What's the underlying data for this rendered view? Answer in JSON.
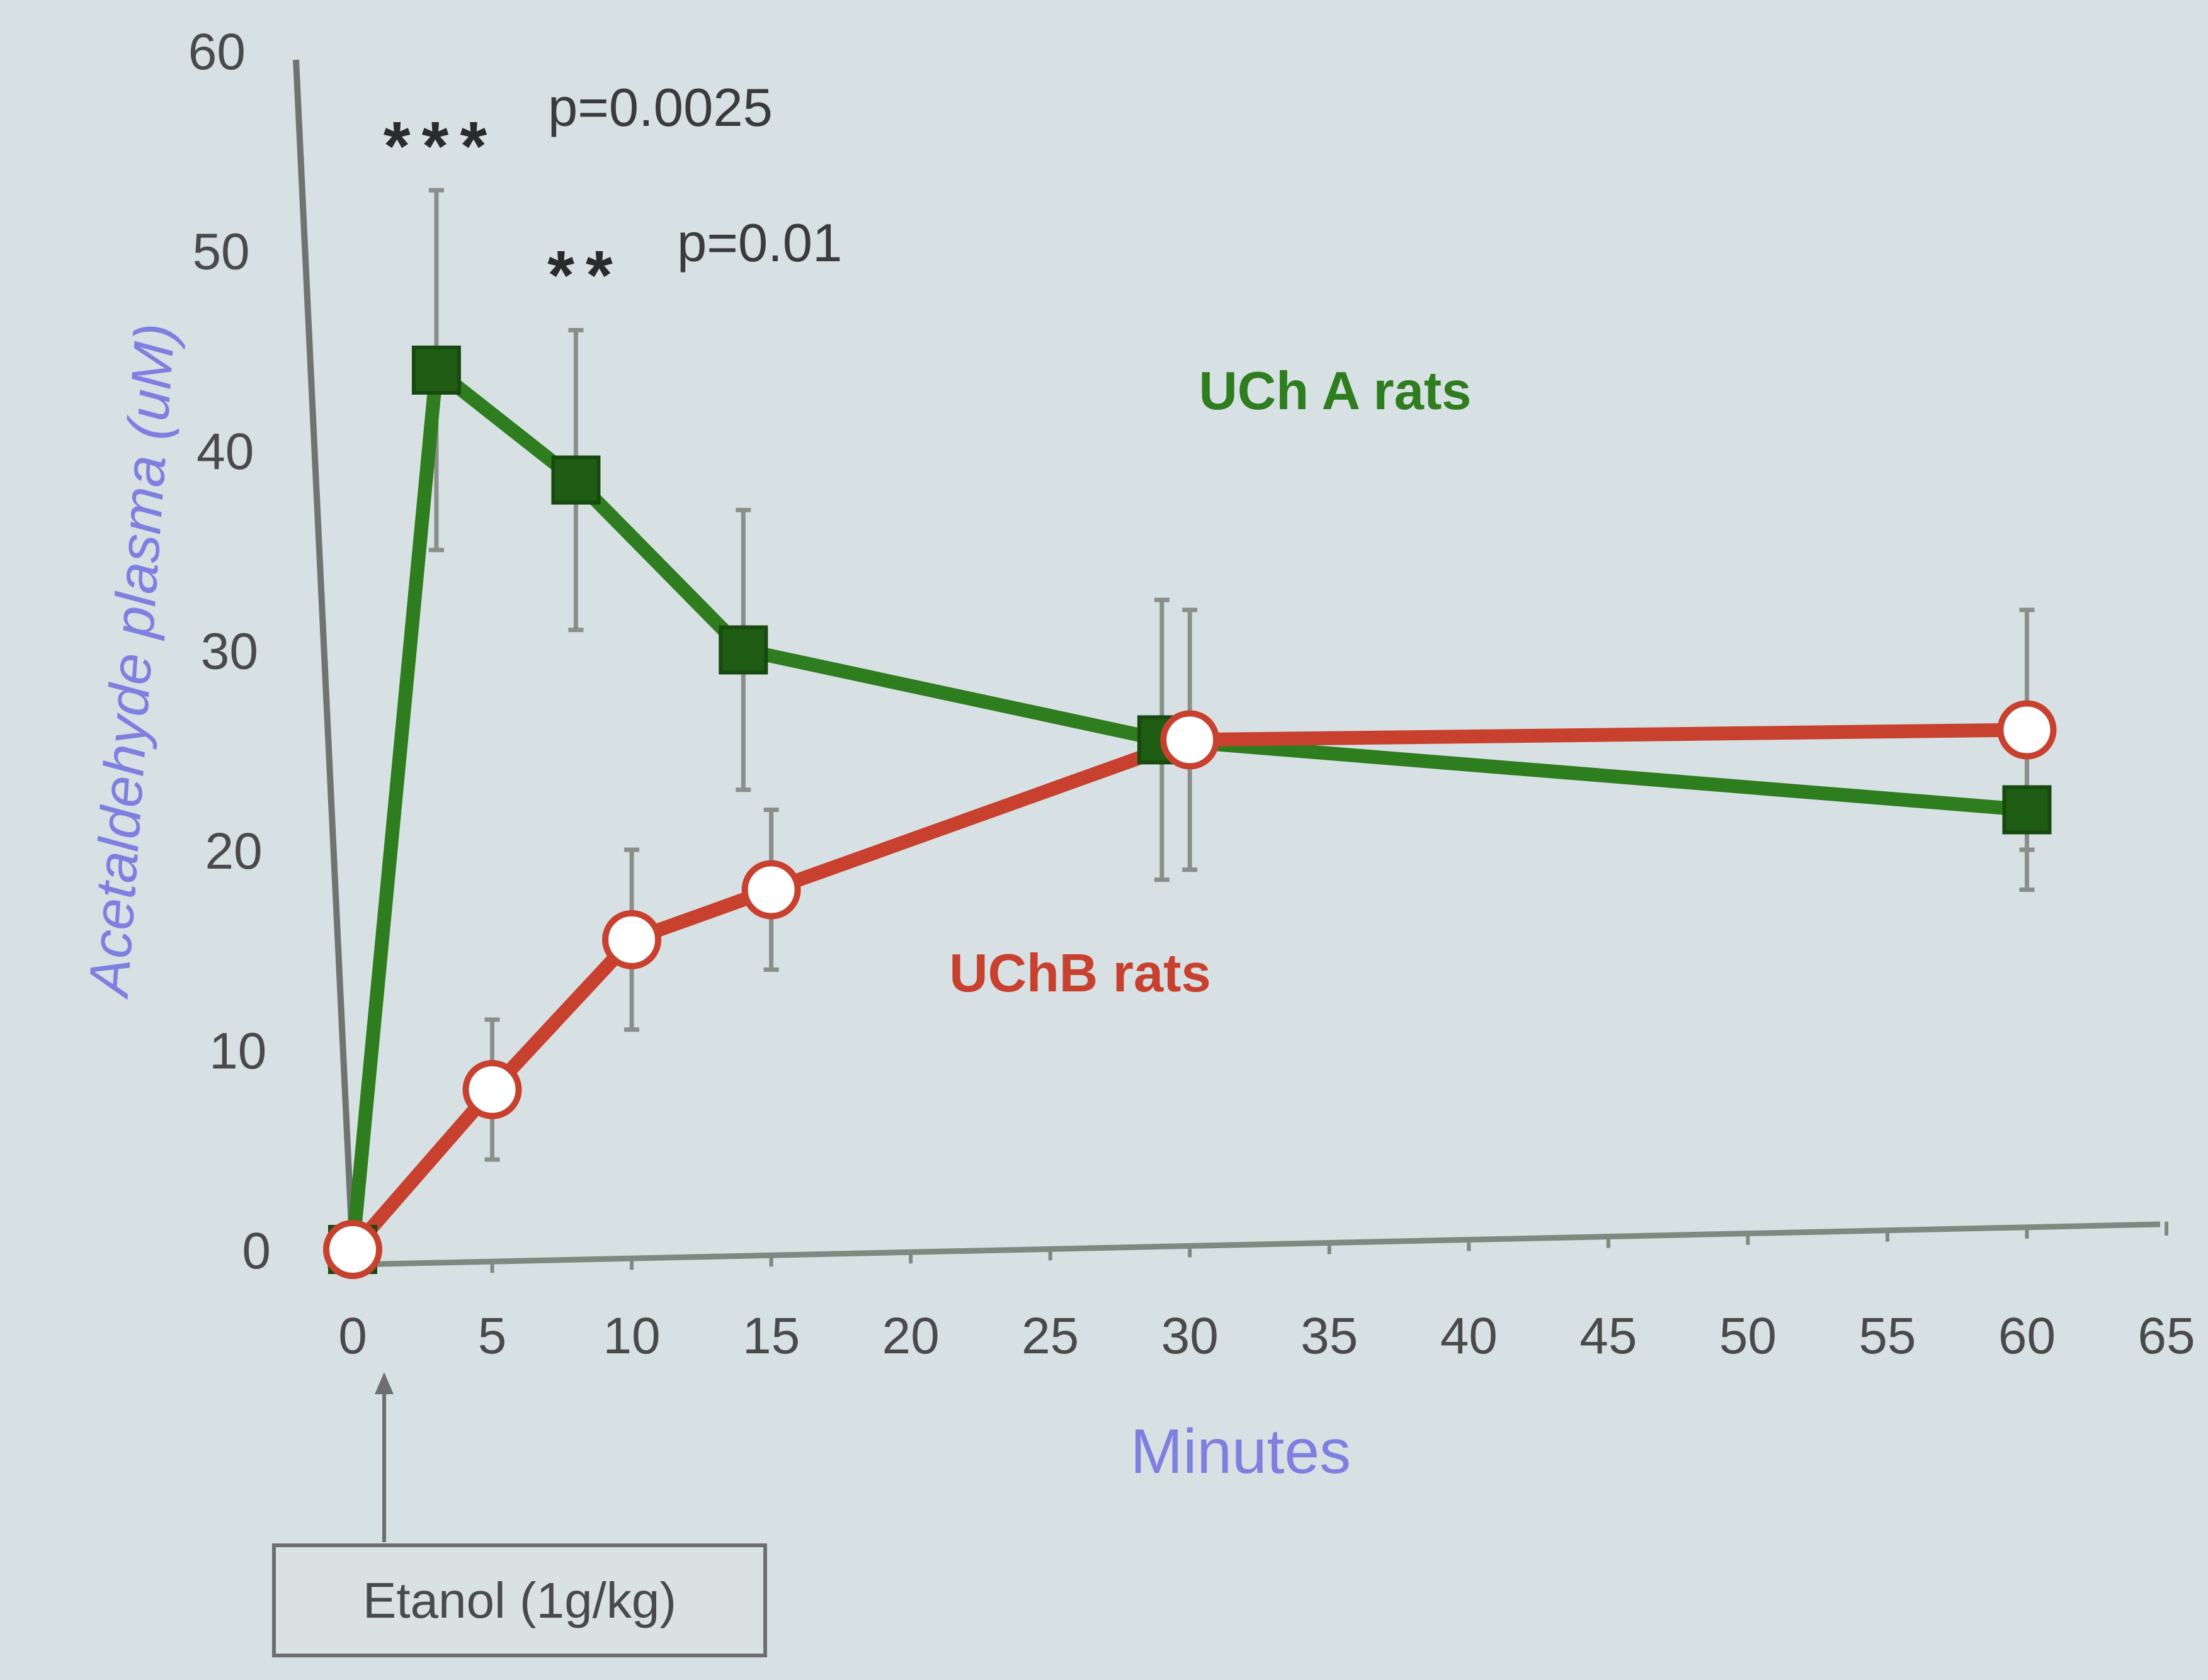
{
  "chart_data": {
    "type": "line",
    "xlabel": "Minutes",
    "ylabel": "Acetaldehyde plasma (uM)",
    "xlim": [
      0,
      65
    ],
    "ylim": [
      0,
      60
    ],
    "x_ticks": [
      "0",
      "5",
      "10",
      "15",
      "20",
      "25",
      "30",
      "35",
      "40",
      "45",
      "50",
      "55",
      "60",
      "65"
    ],
    "y_ticks": [
      "0",
      "10",
      "20",
      "30",
      "40",
      "50",
      "60"
    ],
    "grid": false,
    "series": [
      {
        "name": "UCh A rats",
        "color": "#2e7d1e",
        "marker": "filled-square",
        "x": [
          0,
          3,
          8,
          14,
          29,
          60
        ],
        "y": [
          0,
          44,
          38.5,
          30,
          25.5,
          22
        ],
        "err": [
          0,
          9,
          7.5,
          7,
          7,
          4
        ]
      },
      {
        "name": "UChB rats",
        "color": "#c8402e",
        "marker": "open-circle",
        "x": [
          0,
          5,
          10,
          15,
          30,
          60
        ],
        "y": [
          0,
          8,
          15.5,
          18,
          25.5,
          26
        ],
        "err": [
          0,
          3.5,
          4.5,
          4,
          6.5,
          6
        ]
      }
    ],
    "annotations": {
      "sig1_stars": "***",
      "sig1_p": "p=0.0025",
      "sig2_stars": "**",
      "sig2_p": "p=0.01",
      "dose_box": "Etanol (1g/kg)"
    }
  }
}
